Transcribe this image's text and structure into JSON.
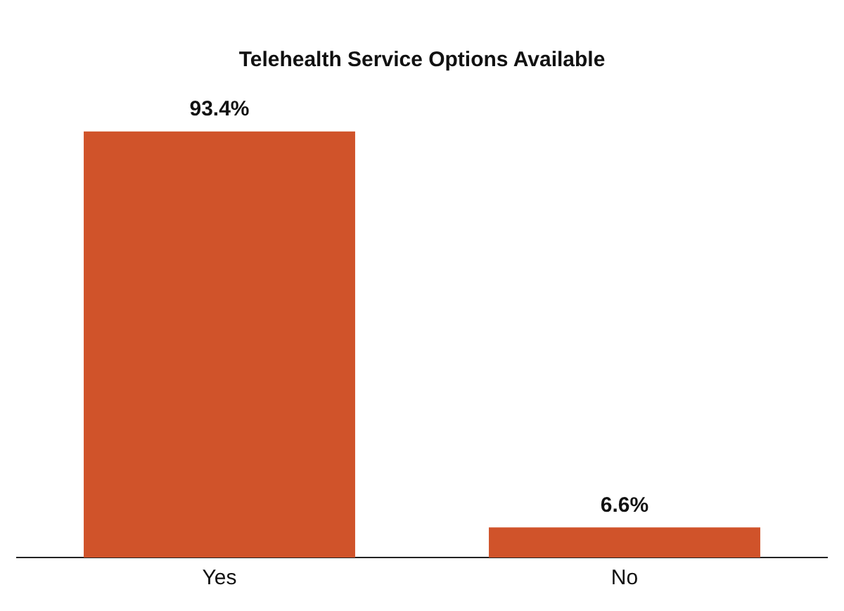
{
  "chart_data": {
    "type": "bar",
    "title": "Telehealth Service Options Available",
    "categories": [
      "Yes",
      "No"
    ],
    "values": [
      93.4,
      6.6
    ],
    "color": "#d0532a",
    "value_labels": [
      "93.4%",
      "6.6%"
    ],
    "grid": false,
    "legend": false
  }
}
